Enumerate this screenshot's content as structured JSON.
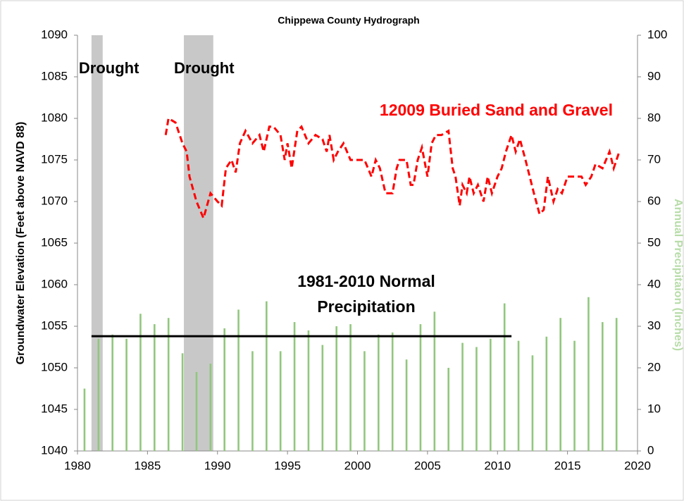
{
  "chart_data": {
    "type": "line",
    "title": "Chippewa County Hydrograph",
    "y_label": "Groundwater Elevation (Feet above NAVD 88)",
    "y2_label": "Annual Precipitaion (Inches)",
    "xlim": [
      1980,
      2020
    ],
    "xticks": [
      1980,
      1985,
      1990,
      1995,
      2000,
      2005,
      2010,
      2015,
      2020
    ],
    "ylim": [
      1040,
      1090
    ],
    "yticks": [
      1040,
      1045,
      1050,
      1055,
      1060,
      1065,
      1070,
      1075,
      1080,
      1085,
      1090
    ],
    "y2lim": [
      0,
      100
    ],
    "y2ticks": [
      0,
      10,
      20,
      30,
      40,
      50,
      60,
      70,
      80,
      90,
      100
    ],
    "grid": false,
    "shaded_regions": [
      {
        "label": "Drought",
        "x": [
          1981,
          1981.8
        ],
        "color": "#c8c8c8"
      },
      {
        "label": "Drought",
        "x": [
          1987.6,
          1989.7
        ],
        "color": "#c8c8c8"
      }
    ],
    "reference_line": {
      "label_lines": [
        "1981-2010 Normal",
        "Precipitation"
      ],
      "x": [
        1981,
        2011
      ],
      "value": 27.6,
      "axis": "y2",
      "color": "#000000"
    },
    "series": [
      {
        "name": "12009 Buried Sand and Gravel",
        "type": "line",
        "color": "#ff0000",
        "dashed": true,
        "x": [
          1986.3,
          1986.5,
          1987,
          1987.5,
          1987.8,
          1988,
          1988.5,
          1989,
          1989.5,
          1990,
          1990.3,
          1990.6,
          1991,
          1991.3,
          1991.6,
          1992,
          1992.5,
          1993,
          1993.3,
          1993.7,
          1994,
          1994.5,
          1994.8,
          1995,
          1995.3,
          1995.7,
          1996,
          1996.5,
          1997,
          1997.5,
          1997.8,
          1998,
          1998.3,
          1998.6,
          1999,
          1999.5,
          2000,
          2000.5,
          2001,
          2001.3,
          2001.6,
          2002,
          2002.5,
          2002.8,
          2003,
          2003.5,
          2003.8,
          2004,
          2004.3,
          2004.6,
          2005,
          2005.3,
          2005.6,
          2006,
          2006.5,
          2006.8,
          2007,
          2007.3,
          2007.5,
          2007.8,
          2008,
          2008.3,
          2008.6,
          2009,
          2009.3,
          2009.6,
          2010,
          2010.3,
          2010.6,
          2011,
          2011.3,
          2011.6,
          2012,
          2012.3,
          2012.6,
          2013,
          2013.3,
          2013.6,
          2014,
          2014.3,
          2014.6,
          2015,
          2015.5,
          2016,
          2016.3,
          2016.7,
          2017,
          2017.5,
          2018,
          2018.3,
          2018.7
        ],
        "values": [
          1078,
          1080,
          1079.5,
          1077,
          1076,
          1073,
          1070,
          1068,
          1071,
          1070,
          1069.5,
          1074,
          1075,
          1073.5,
          1077,
          1078.5,
          1077,
          1078,
          1076,
          1079,
          1079,
          1078,
          1075,
          1077,
          1074,
          1078.5,
          1079,
          1077,
          1078,
          1077.5,
          1076,
          1078,
          1075,
          1076,
          1077,
          1075,
          1075,
          1075,
          1073,
          1075,
          1074,
          1071,
          1071,
          1074,
          1075,
          1075,
          1072,
          1072,
          1075,
          1076.5,
          1073,
          1077,
          1078,
          1078,
          1078.5,
          1074,
          1073,
          1069.5,
          1072,
          1071,
          1073,
          1071,
          1072,
          1070,
          1073,
          1071,
          1073,
          1074,
          1076,
          1078,
          1076,
          1077.5,
          1075,
          1073,
          1071,
          1068.5,
          1069,
          1073,
          1070,
          1071.5,
          1071,
          1073,
          1073,
          1073,
          1072,
          1073,
          1074.5,
          1074,
          1076,
          1074,
          1076
        ]
      },
      {
        "type": "bar",
        "axis": "y2",
        "color": "#92c77e",
        "x": [
          1980.5,
          1981.5,
          1982.5,
          1983.5,
          1984.5,
          1985.5,
          1986.5,
          1987.5,
          1988.5,
          1989.5,
          1990.5,
          1991.5,
          1992.5,
          1993.5,
          1994.5,
          1995.5,
          1996.5,
          1997.5,
          1998.5,
          1999.5,
          2000.5,
          2001.5,
          2002.5,
          2003.5,
          2004.5,
          2005.5,
          2006.5,
          2007.5,
          2008.5,
          2009.5,
          2010.5,
          2011.5,
          2012.5,
          2013.5,
          2014.5,
          2015.5,
          2016.5,
          2017.5,
          2018.5
        ],
        "values": [
          15,
          27,
          28,
          27,
          33,
          30.5,
          32,
          23.5,
          19,
          21,
          29.5,
          34,
          24,
          36,
          24,
          31,
          29,
          25.5,
          30,
          30.5,
          24,
          28,
          28.5,
          22,
          30.5,
          33.5,
          20,
          26,
          25,
          27,
          35.5,
          26.5,
          23,
          27.5,
          32,
          26.5,
          37,
          31,
          32
        ]
      }
    ]
  }
}
